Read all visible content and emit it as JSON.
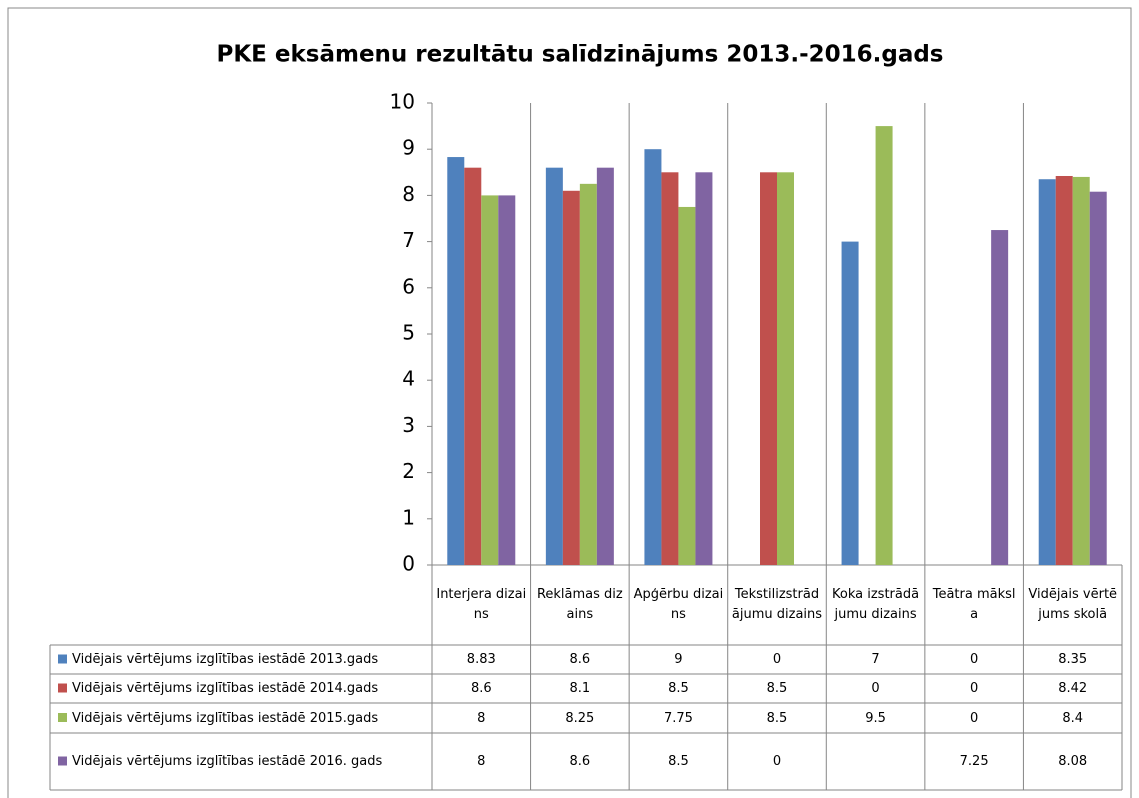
{
  "chart_data": {
    "type": "bar",
    "title": "PKE eksāmenu rezultātu salīdzinājums 2013.-2016.gads",
    "categories": [
      "Interjera dizains",
      "Reklāmas dizains",
      "Apģērbu dizains",
      "Tekstilizstrādājumu dizains",
      "Koka izstrādājumu dizains",
      "Teātra māksla",
      "Vidējais vērtējums skolā"
    ],
    "series": [
      {
        "name": "Vidējais vērtējums izglītības iestādē 2013.gads",
        "color": "#4f81bd",
        "values": [
          8.83,
          8.6,
          9,
          0,
          7,
          0,
          8.35
        ]
      },
      {
        "name": "Vidējais vērtējums izglītības iestādē 2014.gads",
        "color": "#c0504d",
        "values": [
          8.6,
          8.1,
          8.5,
          8.5,
          0,
          0,
          8.42
        ]
      },
      {
        "name": "Vidējais vērtējums izglītības iestādē 2015.gads",
        "color": "#9bbb59",
        "values": [
          8,
          8.25,
          7.75,
          8.5,
          9.5,
          0,
          8.4
        ]
      },
      {
        "name": "Vidējais vērtējums izglītības iestādē 2016. gads",
        "color": "#8064a2",
        "values": [
          8,
          8.6,
          8.5,
          0,
          null,
          7.25,
          8.08
        ]
      }
    ],
    "ylim": [
      0,
      10
    ],
    "yticks": [
      0,
      1,
      2,
      3,
      4,
      5,
      6,
      7,
      8,
      9,
      10
    ],
    "grid": false
  }
}
